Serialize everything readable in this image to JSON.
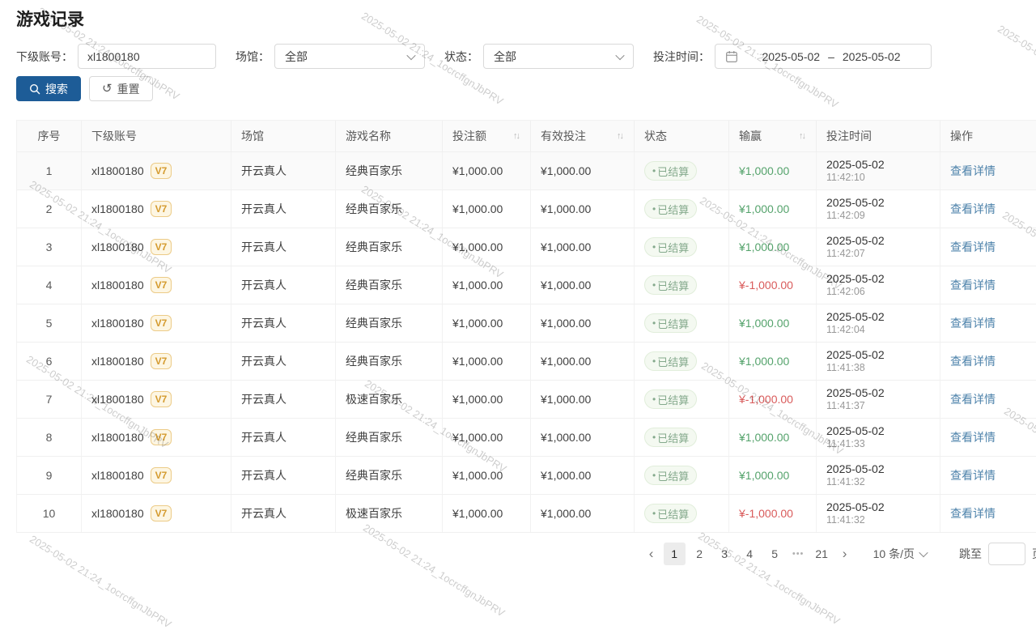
{
  "page_title": "游戏记录",
  "watermark": {
    "text": "2025-05-02 21:24_1ocrcffgnJbPRV"
  },
  "filters": {
    "account_label": "下级账号：",
    "account_value": "xl1800180",
    "venue_label": "场馆：",
    "venue_value": "全部",
    "status_label": "状态：",
    "status_value": "全部",
    "time_label": "投注时间：",
    "date_start": "2025-05-02",
    "date_separator": "–",
    "date_end": "2025-05-02",
    "search_label": "搜索",
    "reset_label": "重置"
  },
  "table": {
    "columns": [
      "序号",
      "下级账号",
      "场馆",
      "游戏名称",
      "投注额",
      "有效投注",
      "状态",
      "输赢",
      "投注时间",
      "操作"
    ],
    "sortable_columns": [
      "投注额",
      "有效投注",
      "输赢"
    ],
    "rows": [
      {
        "no": "1",
        "account": "xl1800180",
        "level": "V7",
        "venue": "开云真人",
        "game": "经典百家乐",
        "bet": "¥1,000.00",
        "valid": "¥1,000.00",
        "status": "已结算",
        "win": "¥1,000.00",
        "win_type": "positive",
        "date": "2025-05-02",
        "time": "11:42:10",
        "action": "查看详情"
      },
      {
        "no": "2",
        "account": "xl1800180",
        "level": "V7",
        "venue": "开云真人",
        "game": "经典百家乐",
        "bet": "¥1,000.00",
        "valid": "¥1,000.00",
        "status": "已结算",
        "win": "¥1,000.00",
        "win_type": "positive",
        "date": "2025-05-02",
        "time": "11:42:09",
        "action": "查看详情"
      },
      {
        "no": "3",
        "account": "xl1800180",
        "level": "V7",
        "venue": "开云真人",
        "game": "经典百家乐",
        "bet": "¥1,000.00",
        "valid": "¥1,000.00",
        "status": "已结算",
        "win": "¥1,000.00",
        "win_type": "positive",
        "date": "2025-05-02",
        "time": "11:42:07",
        "action": "查看详情"
      },
      {
        "no": "4",
        "account": "xl1800180",
        "level": "V7",
        "venue": "开云真人",
        "game": "经典百家乐",
        "bet": "¥1,000.00",
        "valid": "¥1,000.00",
        "status": "已结算",
        "win": "¥-1,000.00",
        "win_type": "negative",
        "date": "2025-05-02",
        "time": "11:42:06",
        "action": "查看详情"
      },
      {
        "no": "5",
        "account": "xl1800180",
        "level": "V7",
        "venue": "开云真人",
        "game": "经典百家乐",
        "bet": "¥1,000.00",
        "valid": "¥1,000.00",
        "status": "已结算",
        "win": "¥1,000.00",
        "win_type": "positive",
        "date": "2025-05-02",
        "time": "11:42:04",
        "action": "查看详情"
      },
      {
        "no": "6",
        "account": "xl1800180",
        "level": "V7",
        "venue": "开云真人",
        "game": "经典百家乐",
        "bet": "¥1,000.00",
        "valid": "¥1,000.00",
        "status": "已结算",
        "win": "¥1,000.00",
        "win_type": "positive",
        "date": "2025-05-02",
        "time": "11:41:38",
        "action": "查看详情"
      },
      {
        "no": "7",
        "account": "xl1800180",
        "level": "V7",
        "venue": "开云真人",
        "game": "极速百家乐",
        "bet": "¥1,000.00",
        "valid": "¥1,000.00",
        "status": "已结算",
        "win": "¥-1,000.00",
        "win_type": "negative",
        "date": "2025-05-02",
        "time": "11:41:37",
        "action": "查看详情"
      },
      {
        "no": "8",
        "account": "xl1800180",
        "level": "V7",
        "venue": "开云真人",
        "game": "经典百家乐",
        "bet": "¥1,000.00",
        "valid": "¥1,000.00",
        "status": "已结算",
        "win": "¥1,000.00",
        "win_type": "positive",
        "date": "2025-05-02",
        "time": "11:41:33",
        "action": "查看详情"
      },
      {
        "no": "9",
        "account": "xl1800180",
        "level": "V7",
        "venue": "开云真人",
        "game": "经典百家乐",
        "bet": "¥1,000.00",
        "valid": "¥1,000.00",
        "status": "已结算",
        "win": "¥1,000.00",
        "win_type": "positive",
        "date": "2025-05-02",
        "time": "11:41:32",
        "action": "查看详情"
      },
      {
        "no": "10",
        "account": "xl1800180",
        "level": "V7",
        "venue": "开云真人",
        "game": "极速百家乐",
        "bet": "¥1,000.00",
        "valid": "¥1,000.00",
        "status": "已结算",
        "win": "¥-1,000.00",
        "win_type": "negative",
        "date": "2025-05-02",
        "time": "11:41:32",
        "action": "查看详情"
      }
    ]
  },
  "pagination": {
    "pages": [
      "1",
      "2",
      "3",
      "4",
      "5",
      "•••",
      "21"
    ],
    "active_page": "1",
    "page_size": "10 条/页",
    "jump_label": "跳至",
    "jump_suffix": "页"
  },
  "icons": {
    "prev": "‹",
    "next": "›",
    "sort": "↑↓",
    "status_dot": "•",
    "reset": "↺"
  },
  "colors": {
    "primary_button": "#1d5c97",
    "link": "#4e83ab",
    "win_positive": "#55a36c",
    "win_negative": "#d95b5b",
    "status_badge_text": "#84a98c",
    "status_badge_bg": "#f4f9f1",
    "level_badge_text": "#d49a2e",
    "level_badge_bg": "#fdf6e3"
  }
}
